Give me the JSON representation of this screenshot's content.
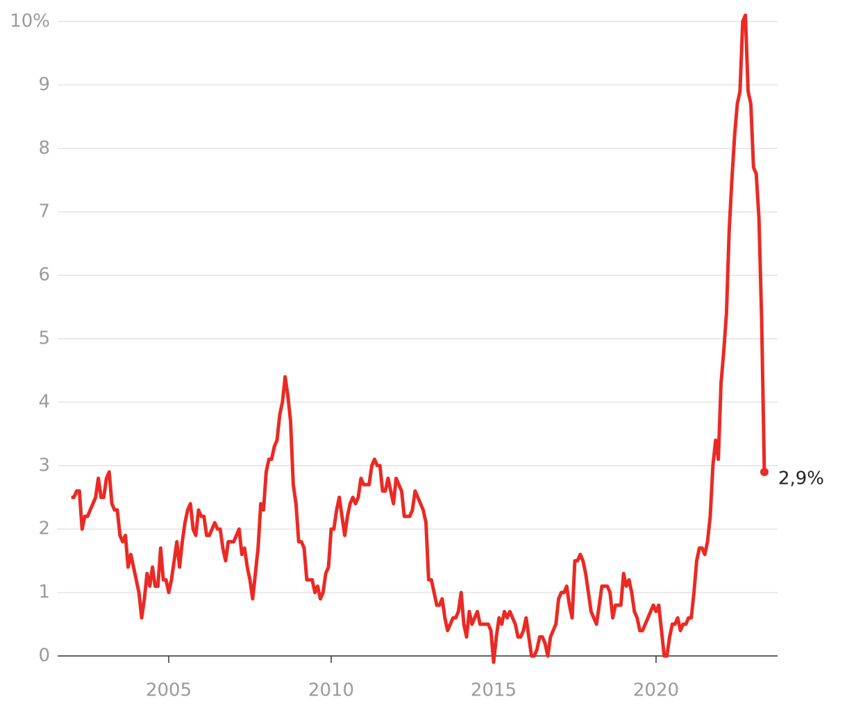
{
  "chart_data": {
    "type": "line",
    "x": [
      2002,
      2002.083,
      2002.167,
      2002.25,
      2002.333,
      2002.417,
      2002.5,
      2002.583,
      2002.667,
      2002.75,
      2002.833,
      2002.917,
      2003,
      2003.083,
      2003.167,
      2003.25,
      2003.333,
      2003.417,
      2003.5,
      2003.583,
      2003.667,
      2003.75,
      2003.833,
      2003.917,
      2004,
      2004.083,
      2004.167,
      2004.25,
      2004.333,
      2004.417,
      2004.5,
      2004.583,
      2004.667,
      2004.75,
      2004.833,
      2004.917,
      2005,
      2005.083,
      2005.167,
      2005.25,
      2005.333,
      2005.417,
      2005.5,
      2005.583,
      2005.667,
      2005.75,
      2005.833,
      2005.917,
      2006,
      2006.083,
      2006.167,
      2006.25,
      2006.333,
      2006.417,
      2006.5,
      2006.583,
      2006.667,
      2006.75,
      2006.833,
      2006.917,
      2007,
      2007.083,
      2007.167,
      2007.25,
      2007.333,
      2007.417,
      2007.5,
      2007.583,
      2007.667,
      2007.75,
      2007.833,
      2007.917,
      2008,
      2008.083,
      2008.167,
      2008.25,
      2008.333,
      2008.417,
      2008.5,
      2008.583,
      2008.667,
      2008.75,
      2008.833,
      2008.917,
      2009,
      2009.083,
      2009.167,
      2009.25,
      2009.333,
      2009.417,
      2009.5,
      2009.583,
      2009.667,
      2009.75,
      2009.833,
      2009.917,
      2010,
      2010.083,
      2010.167,
      2010.25,
      2010.333,
      2010.417,
      2010.5,
      2010.583,
      2010.667,
      2010.75,
      2010.833,
      2010.917,
      2011,
      2011.083,
      2011.167,
      2011.25,
      2011.333,
      2011.417,
      2011.5,
      2011.583,
      2011.667,
      2011.75,
      2011.833,
      2011.917,
      2012,
      2012.083,
      2012.167,
      2012.25,
      2012.333,
      2012.417,
      2012.5,
      2012.583,
      2012.667,
      2012.75,
      2012.833,
      2012.917,
      2013,
      2013.083,
      2013.167,
      2013.25,
      2013.333,
      2013.417,
      2013.5,
      2013.583,
      2013.667,
      2013.75,
      2013.833,
      2013.917,
      2014,
      2014.083,
      2014.167,
      2014.25,
      2014.333,
      2014.417,
      2014.5,
      2014.583,
      2014.667,
      2014.75,
      2014.833,
      2014.917,
      2015,
      2015.083,
      2015.167,
      2015.25,
      2015.333,
      2015.417,
      2015.5,
      2015.583,
      2015.667,
      2015.75,
      2015.833,
      2015.917,
      2016,
      2016.083,
      2016.167,
      2016.25,
      2016.333,
      2016.417,
      2016.5,
      2016.583,
      2016.667,
      2016.75,
      2016.833,
      2016.917,
      2017,
      2017.083,
      2017.167,
      2017.25,
      2017.333,
      2017.417,
      2017.5,
      2017.583,
      2017.667,
      2017.75,
      2017.833,
      2017.917,
      2018,
      2018.083,
      2018.167,
      2018.25,
      2018.333,
      2018.417,
      2018.5,
      2018.583,
      2018.667,
      2018.75,
      2018.833,
      2018.917,
      2019,
      2019.083,
      2019.167,
      2019.25,
      2019.333,
      2019.417,
      2019.5,
      2019.583,
      2019.667,
      2019.75,
      2019.833,
      2019.917,
      2020,
      2020.083,
      2020.167,
      2020.25,
      2020.333,
      2020.417,
      2020.5,
      2020.583,
      2020.667,
      2020.75,
      2020.833,
      2020.917,
      2021,
      2021.083,
      2021.167,
      2021.25,
      2021.333,
      2021.417,
      2021.5,
      2021.583,
      2021.667,
      2021.75,
      2021.833,
      2021.917,
      2022,
      2022.083,
      2022.167,
      2022.25,
      2022.333,
      2022.417,
      2022.5,
      2022.583,
      2022.667,
      2022.75,
      2022.833,
      2022.917,
      2023,
      2023.083,
      2023.167,
      2023.25,
      2023.333
    ],
    "series": [
      {
        "color": "#ea2a24",
        "values": [
          2.5,
          2.5,
          2.6,
          2.6,
          2.0,
          2.2,
          2.2,
          2.3,
          2.4,
          2.5,
          2.8,
          2.5,
          2.5,
          2.8,
          2.9,
          2.4,
          2.3,
          2.3,
          1.9,
          1.8,
          1.9,
          1.4,
          1.6,
          1.4,
          1.2,
          1.0,
          0.6,
          0.9,
          1.3,
          1.1,
          1.4,
          1.1,
          1.1,
          1.7,
          1.2,
          1.2,
          1.0,
          1.2,
          1.5,
          1.8,
          1.4,
          1.8,
          2.1,
          2.3,
          2.4,
          2.0,
          1.9,
          2.3,
          2.2,
          2.2,
          1.9,
          1.9,
          2.0,
          2.1,
          2.0,
          2.0,
          1.7,
          1.5,
          1.8,
          1.8,
          1.8,
          1.9,
          2.0,
          1.6,
          1.7,
          1.4,
          1.2,
          0.9,
          1.3,
          1.7,
          2.4,
          2.3,
          2.9,
          3.1,
          3.1,
          3.3,
          3.4,
          3.8,
          4.0,
          4.4,
          4.1,
          3.7,
          2.7,
          2.4,
          1.8,
          1.8,
          1.7,
          1.2,
          1.2,
          1.2,
          1.0,
          1.1,
          0.9,
          1.0,
          1.3,
          1.4,
          2.0,
          2.0,
          2.3,
          2.5,
          2.2,
          1.9,
          2.2,
          2.4,
          2.5,
          2.4,
          2.5,
          2.8,
          2.7,
          2.7,
          2.7,
          3.0,
          3.1,
          3.0,
          3.0,
          2.6,
          2.6,
          2.8,
          2.6,
          2.4,
          2.8,
          2.7,
          2.6,
          2.2,
          2.2,
          2.2,
          2.3,
          2.6,
          2.5,
          2.4,
          2.3,
          2.1,
          1.2,
          1.2,
          1.0,
          0.8,
          0.8,
          0.9,
          0.6,
          0.4,
          0.5,
          0.6,
          0.6,
          0.7,
          1.0,
          0.5,
          0.3,
          0.7,
          0.5,
          0.6,
          0.7,
          0.5,
          0.5,
          0.5,
          0.5,
          0.4,
          -0.1,
          0.3,
          0.6,
          0.5,
          0.7,
          0.6,
          0.7,
          0.6,
          0.5,
          0.3,
          0.3,
          0.4,
          0.6,
          0.3,
          0.0,
          0.0,
          0.1,
          0.3,
          0.3,
          0.2,
          0.0,
          0.3,
          0.4,
          0.5,
          0.9,
          1.0,
          1.0,
          1.1,
          0.8,
          0.6,
          1.5,
          1.5,
          1.6,
          1.5,
          1.3,
          1.0,
          0.7,
          0.6,
          0.5,
          0.8,
          1.1,
          1.1,
          1.1,
          1.0,
          0.6,
          0.8,
          0.8,
          0.8,
          1.3,
          1.1,
          1.2,
          1.0,
          0.7,
          0.6,
          0.4,
          0.4,
          0.5,
          0.6,
          0.7,
          0.8,
          0.7,
          0.8,
          0.4,
          0.0,
          0.0,
          0.3,
          0.5,
          0.5,
          0.6,
          0.4,
          0.5,
          0.5,
          0.6,
          0.6,
          1.0,
          1.5,
          1.7,
          1.7,
          1.6,
          1.8,
          2.2,
          3.0,
          3.4,
          3.1,
          4.3,
          4.8,
          5.4,
          6.7,
          7.5,
          8.2,
          8.7,
          8.9,
          10.0,
          10.1,
          8.9,
          8.7,
          7.7,
          7.6,
          6.9,
          5.3,
          2.9
        ],
        "value_labels": [
          null,
          null,
          null,
          null,
          null,
          null,
          null,
          null,
          null,
          null,
          null,
          null,
          null,
          null,
          null,
          null,
          null,
          null,
          null,
          null,
          null,
          null,
          null,
          null,
          null,
          null,
          null,
          null,
          null,
          null,
          null,
          null,
          null,
          null,
          null,
          null,
          null,
          null,
          null,
          null,
          null,
          null,
          null,
          null,
          null,
          null,
          null,
          null,
          null,
          null,
          null,
          null,
          null,
          null,
          null,
          null,
          null,
          null,
          null,
          null,
          null,
          null,
          null,
          null,
          null,
          null,
          null,
          null,
          null,
          null,
          null,
          null,
          null,
          null,
          null,
          null,
          null,
          null,
          null,
          null,
          null,
          null,
          null,
          null,
          null,
          null,
          null,
          null,
          null,
          null,
          null,
          null,
          null,
          null,
          null,
          null,
          null,
          null,
          null,
          null,
          null,
          null,
          null,
          null,
          null,
          null,
          null,
          null,
          null,
          null,
          null,
          null,
          null,
          null,
          null,
          null,
          null,
          null,
          null,
          null,
          null,
          null,
          null,
          null,
          null,
          null,
          null,
          null,
          null,
          null,
          null,
          null,
          null,
          null,
          null,
          null,
          null,
          null,
          null,
          null,
          null,
          null,
          null,
          null,
          null,
          null,
          null,
          null,
          null,
          null,
          null,
          null,
          null,
          null,
          null,
          null,
          null,
          null,
          null,
          null,
          null,
          null,
          null,
          null,
          null,
          null,
          null,
          null,
          null,
          null,
          null,
          null,
          null,
          null,
          null,
          null,
          null,
          null,
          null,
          null,
          null,
          null,
          null,
          null,
          null,
          null,
          null,
          null,
          null,
          null,
          null,
          null,
          null,
          null,
          null,
          null,
          null,
          null,
          null,
          null,
          null,
          null,
          null,
          null,
          null,
          null,
          null,
          null,
          null,
          null,
          null,
          null,
          null,
          null,
          null,
          null,
          null,
          null,
          null,
          null,
          null,
          null,
          null,
          null,
          null,
          null,
          null,
          null,
          null,
          null,
          null,
          null,
          null,
          null,
          null,
          null,
          null,
          null,
          null,
          null,
          null,
          null,
          null,
          null,
          null,
          null,
          null,
          null,
          null,
          null,
          null,
          null,
          null,
          null,
          null,
          null,
          "2,9%"
        ]
      }
    ],
    "xlim": [
      2001.58,
      2023.74
    ],
    "xticks": [
      2005,
      2010,
      2015,
      2020
    ],
    "ylim": [
      0,
      10
    ],
    "yticks": [
      0,
      1,
      2,
      3,
      4,
      5,
      6,
      7,
      8,
      9,
      {
        "value": 10,
        "label": "10%"
      }
    ],
    "grid": true
  }
}
